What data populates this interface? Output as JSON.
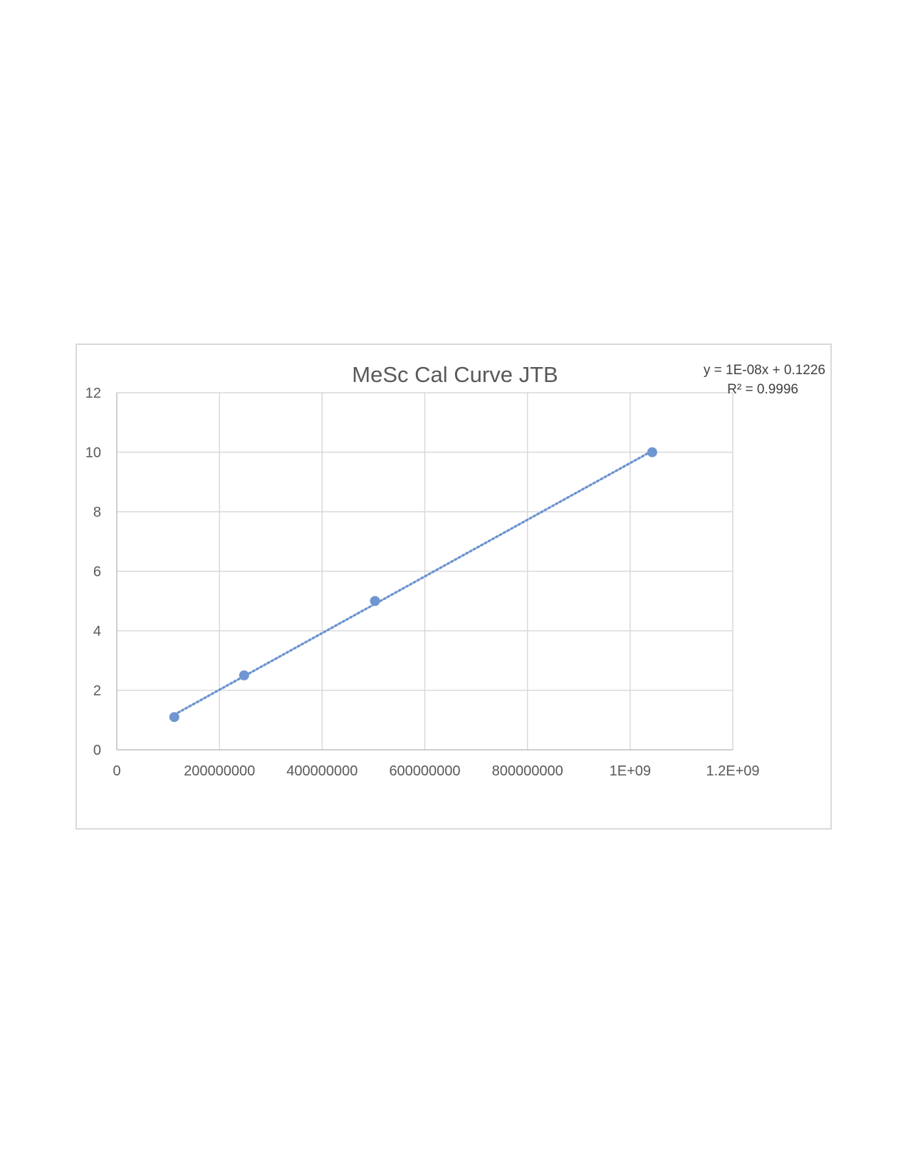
{
  "colors": {
    "series": "#7096d2",
    "trendline": "#6a92d0",
    "grid": "#d9d9d9",
    "text": "#595959",
    "frame": "#d9d9d9"
  },
  "chart_data": {
    "type": "scatter",
    "title": "MeSc Cal Curve JTB",
    "xlabel": "",
    "ylabel": "",
    "xlim": [
      0,
      1200000000
    ],
    "ylim": [
      0,
      12
    ],
    "x_ticks": [
      0,
      200000000,
      400000000,
      600000000,
      800000000,
      1000000000,
      1200000000
    ],
    "x_tick_labels": [
      "0",
      "200000000",
      "400000000",
      "600000000",
      "800000000",
      "1E+09",
      "1.2E+09"
    ],
    "y_ticks": [
      0,
      2,
      4,
      6,
      8,
      10,
      12
    ],
    "y_tick_labels": [
      "0",
      "2",
      "4",
      "6",
      "8",
      "10",
      "12"
    ],
    "grid": true,
    "legend": "none",
    "series": [
      {
        "x": [
          112000000,
          248000000,
          503000000,
          1043000000
        ],
        "y": [
          1.1,
          2.5,
          5.0,
          10.0
        ]
      }
    ],
    "trendline": {
      "type": "linear",
      "equation": "y = 1E-08x + 0.1226",
      "r_squared": "R² = 0.9996",
      "style": "dotted"
    }
  }
}
